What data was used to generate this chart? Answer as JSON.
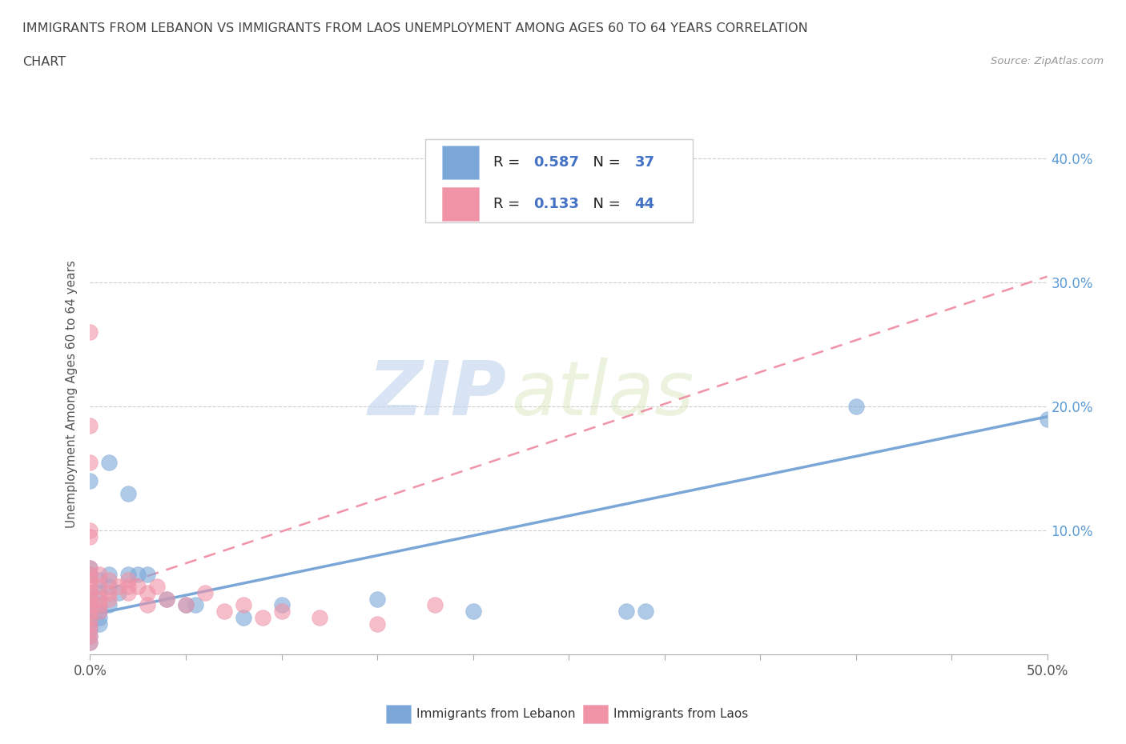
{
  "title_line1": "IMMIGRANTS FROM LEBANON VS IMMIGRANTS FROM LAOS UNEMPLOYMENT AMONG AGES 60 TO 64 YEARS CORRELATION",
  "title_line2": "CHART",
  "source_text": "Source: ZipAtlas.com",
  "ylabel": "Unemployment Among Ages 60 to 64 years",
  "xlim": [
    0.0,
    0.5
  ],
  "ylim": [
    0.0,
    0.42
  ],
  "xtick_values": [
    0.0,
    0.05,
    0.1,
    0.15,
    0.2,
    0.25,
    0.3,
    0.35,
    0.4,
    0.45,
    0.5
  ],
  "xtick_labels_show": {
    "0.0": "0.0%",
    "0.5": "50.0%"
  },
  "ytick_values": [
    0.1,
    0.2,
    0.3,
    0.4
  ],
  "ytick_labels": [
    "10.0%",
    "20.0%",
    "30.0%",
    "40.0%"
  ],
  "lebanon_color": "#7ba7d8",
  "laos_color": "#f093a7",
  "lebanon_R": 0.587,
  "lebanon_N": 37,
  "laos_R": 0.133,
  "laos_N": 44,
  "legend_label_lebanon": "Immigrants from Lebanon",
  "legend_label_laos": "Immigrants from Laos",
  "watermark_zip": "ZIP",
  "watermark_atlas": "atlas",
  "lebanon_scatter": [
    [
      0.0,
      0.14
    ],
    [
      0.0,
      0.07
    ],
    [
      0.0,
      0.065
    ],
    [
      0.0,
      0.05
    ],
    [
      0.0,
      0.04
    ],
    [
      0.0,
      0.035
    ],
    [
      0.0,
      0.03
    ],
    [
      0.0,
      0.025
    ],
    [
      0.0,
      0.02
    ],
    [
      0.0,
      0.015
    ],
    [
      0.0,
      0.01
    ],
    [
      0.005,
      0.06
    ],
    [
      0.005,
      0.05
    ],
    [
      0.005,
      0.04
    ],
    [
      0.005,
      0.035
    ],
    [
      0.005,
      0.03
    ],
    [
      0.005,
      0.025
    ],
    [
      0.01,
      0.155
    ],
    [
      0.01,
      0.065
    ],
    [
      0.01,
      0.055
    ],
    [
      0.01,
      0.04
    ],
    [
      0.015,
      0.05
    ],
    [
      0.02,
      0.13
    ],
    [
      0.02,
      0.065
    ],
    [
      0.025,
      0.065
    ],
    [
      0.03,
      0.065
    ],
    [
      0.04,
      0.045
    ],
    [
      0.05,
      0.04
    ],
    [
      0.055,
      0.04
    ],
    [
      0.08,
      0.03
    ],
    [
      0.1,
      0.04
    ],
    [
      0.15,
      0.045
    ],
    [
      0.2,
      0.035
    ],
    [
      0.28,
      0.035
    ],
    [
      0.29,
      0.035
    ],
    [
      0.4,
      0.2
    ],
    [
      0.5,
      0.19
    ]
  ],
  "laos_scatter": [
    [
      0.0,
      0.26
    ],
    [
      0.0,
      0.185
    ],
    [
      0.0,
      0.155
    ],
    [
      0.0,
      0.1
    ],
    [
      0.0,
      0.095
    ],
    [
      0.0,
      0.07
    ],
    [
      0.0,
      0.065
    ],
    [
      0.0,
      0.06
    ],
    [
      0.0,
      0.055
    ],
    [
      0.0,
      0.05
    ],
    [
      0.0,
      0.045
    ],
    [
      0.0,
      0.04
    ],
    [
      0.0,
      0.035
    ],
    [
      0.0,
      0.03
    ],
    [
      0.0,
      0.025
    ],
    [
      0.0,
      0.02
    ],
    [
      0.0,
      0.015
    ],
    [
      0.0,
      0.01
    ],
    [
      0.005,
      0.065
    ],
    [
      0.005,
      0.055
    ],
    [
      0.005,
      0.045
    ],
    [
      0.005,
      0.04
    ],
    [
      0.005,
      0.035
    ],
    [
      0.01,
      0.06
    ],
    [
      0.01,
      0.05
    ],
    [
      0.01,
      0.045
    ],
    [
      0.015,
      0.055
    ],
    [
      0.02,
      0.06
    ],
    [
      0.02,
      0.055
    ],
    [
      0.02,
      0.05
    ],
    [
      0.025,
      0.055
    ],
    [
      0.03,
      0.05
    ],
    [
      0.03,
      0.04
    ],
    [
      0.035,
      0.055
    ],
    [
      0.04,
      0.045
    ],
    [
      0.05,
      0.04
    ],
    [
      0.06,
      0.05
    ],
    [
      0.07,
      0.035
    ],
    [
      0.08,
      0.04
    ],
    [
      0.09,
      0.03
    ],
    [
      0.1,
      0.035
    ],
    [
      0.12,
      0.03
    ],
    [
      0.15,
      0.025
    ],
    [
      0.18,
      0.04
    ]
  ],
  "lebanon_trendline": [
    [
      0.0,
      0.032
    ],
    [
      0.5,
      0.192
    ]
  ],
  "laos_trendline": [
    [
      0.0,
      0.048
    ],
    [
      0.5,
      0.305
    ]
  ]
}
